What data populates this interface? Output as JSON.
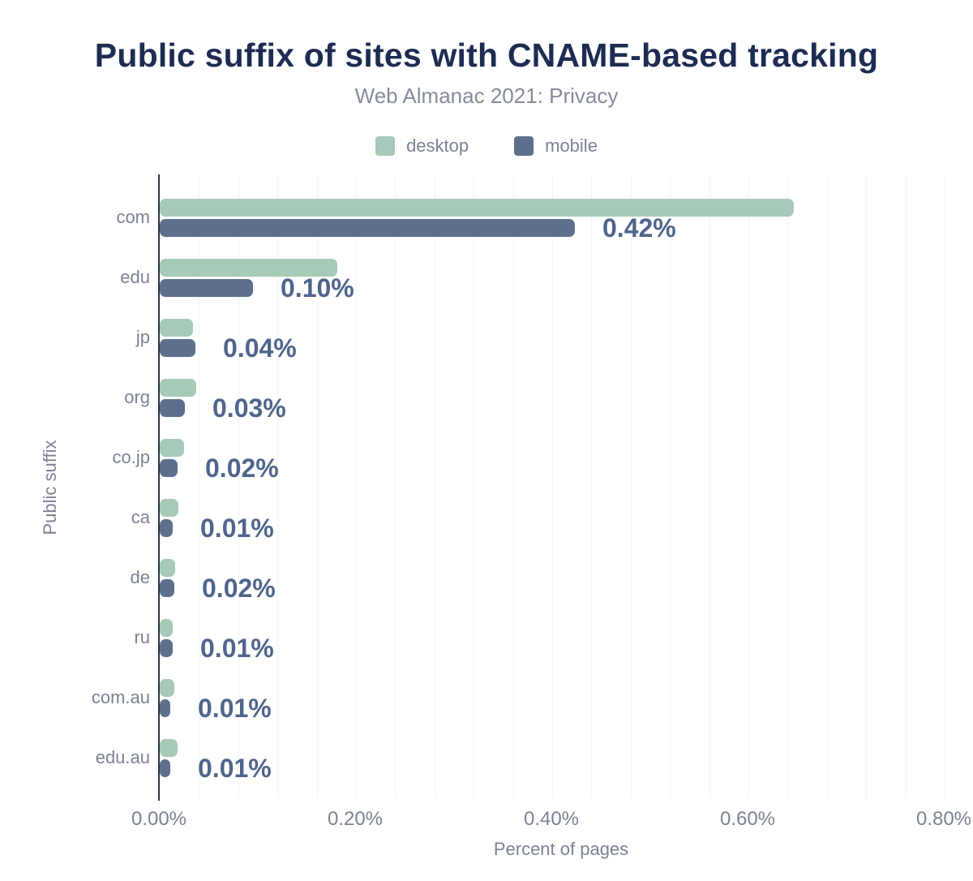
{
  "chart_data": {
    "type": "bar",
    "orientation": "horizontal",
    "title": "Public suffix of sites with CNAME-based tracking",
    "subtitle": "Web Almanac 2021: Privacy",
    "xlabel": "Percent of pages",
    "ylabel": "Public suffix",
    "categories": [
      "com",
      "edu",
      "jp",
      "org",
      "co.jp",
      "ca",
      "de",
      "ru",
      "com.au",
      "edu.au"
    ],
    "series": [
      {
        "name": "desktop",
        "color": "#a7c9b8",
        "values_pct": [
          0.646,
          0.181,
          0.034,
          0.037,
          0.025,
          0.019,
          0.016,
          0.013,
          0.015,
          0.018
        ]
      },
      {
        "name": "mobile",
        "color": "#5d6f8d",
        "values_pct": [
          0.423,
          0.095,
          0.036,
          0.026,
          0.018,
          0.013,
          0.015,
          0.013,
          0.011,
          0.011
        ]
      }
    ],
    "value_labels": [
      "0.42%",
      "0.10%",
      "0.04%",
      "0.03%",
      "0.02%",
      "0.01%",
      "0.02%",
      "0.01%",
      "0.01%",
      "0.01%"
    ],
    "value_labels_on_series": "mobile",
    "x_ticks": [
      {
        "label": "0.00%",
        "value": 0.0
      },
      {
        "label": "0.20%",
        "value": 0.2
      },
      {
        "label": "0.40%",
        "value": 0.4
      },
      {
        "label": "0.60%",
        "value": 0.6
      },
      {
        "label": "0.80%",
        "value": 0.8
      }
    ],
    "xlim": [
      0,
      0.82
    ],
    "gridline_step_pct": 0.04,
    "grid": true,
    "legend_position": "top"
  },
  "colors": {
    "title": "#1e2c52",
    "subtitle": "#858c9b",
    "axis_text": "#7b8393",
    "value_label": "#50658c",
    "axis_line": "#2e3640",
    "gridline": "#f3f4f6",
    "desktop": "#a7c9b8",
    "mobile": "#5d6f8d",
    "background": "#ffffff"
  }
}
